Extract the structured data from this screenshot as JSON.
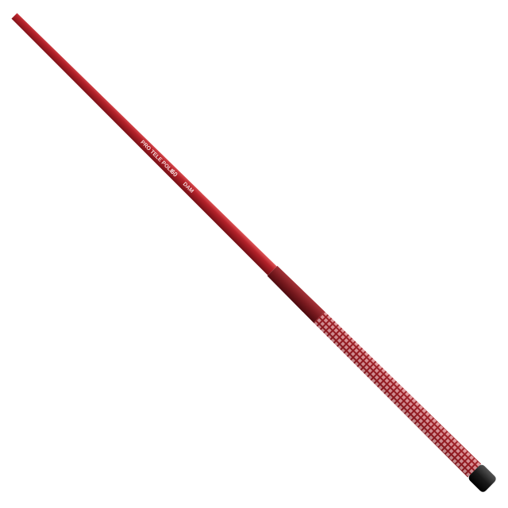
{
  "pole_text": {
    "model": "PRO TELE POLE",
    "length": "60",
    "brand": "DAM"
  }
}
